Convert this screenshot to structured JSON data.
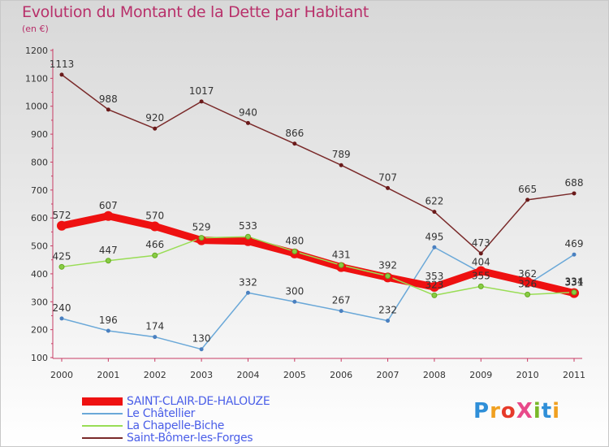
{
  "title": "Evolution du Montant de la Dette par Habitant",
  "subtitle": "(en €)",
  "chart_data": {
    "type": "line",
    "title": "Evolution du Montant de la Dette par Habitant",
    "ylabel": "(en €)",
    "xlabel": "",
    "x": [
      "2000",
      "2001",
      "2002",
      "2003",
      "2004",
      "2005",
      "2006",
      "2007",
      "2008",
      "2009",
      "2010",
      "2011"
    ],
    "ylim": [
      100,
      1200
    ],
    "yticks": [
      100,
      200,
      300,
      400,
      500,
      600,
      700,
      800,
      900,
      1000,
      1100,
      1200
    ],
    "grid": false,
    "legend_position": "bottom-left",
    "series": [
      {
        "name": "SAINT-CLAIR-DE-HALOUZE",
        "color": "#ee1111",
        "values": [
          572,
          607,
          570,
          520,
          517,
          473,
          424,
          387,
          353,
          410,
          371,
          331
        ],
        "labels": [
          "572",
          "607",
          "570",
          "",
          "",
          "",
          "",
          "",
          "353",
          "",
          "",
          "331"
        ]
      },
      {
        "name": "Le Châtellier",
        "color": "#6aa8d8",
        "values": [
          240,
          196,
          174,
          130,
          332,
          300,
          267,
          232,
          495,
          404,
          362,
          469
        ],
        "labels": [
          "240",
          "196",
          "174",
          "130",
          "332",
          "300",
          "267",
          "232",
          "495",
          "404",
          "362",
          "469"
        ]
      },
      {
        "name": "La Chapelle-Biche",
        "color": "#99dd55",
        "values": [
          425,
          447,
          466,
          529,
          533,
          480,
          431,
          392,
          323,
          355,
          326,
          334
        ],
        "labels": [
          "425",
          "447",
          "466",
          "529",
          "533",
          "480",
          "431",
          "392",
          "323",
          "355",
          "326",
          "334"
        ]
      },
      {
        "name": "Saint-Bômer-les-Forges",
        "color": "#7a2a2a",
        "values": [
          1113,
          988,
          920,
          1017,
          940,
          866,
          789,
          707,
          622,
          473,
          665,
          688
        ],
        "labels": [
          "1113",
          "988",
          "920",
          "1017",
          "940",
          "866",
          "789",
          "707",
          "622",
          "473",
          "665",
          "688"
        ]
      }
    ]
  },
  "legend": [
    {
      "label": "SAINT-CLAIR-DE-HALOUZE",
      "color": "#ee1111",
      "weight": 10
    },
    {
      "label": "Le Châtellier",
      "color": "#6aa8d8",
      "weight": 2
    },
    {
      "label": "La Chapelle-Biche",
      "color": "#99dd55",
      "weight": 2
    },
    {
      "label": "Saint-Bômer-les-Forges",
      "color": "#7a2a2a",
      "weight": 2
    }
  ],
  "logo": {
    "text": "ProXiti"
  }
}
